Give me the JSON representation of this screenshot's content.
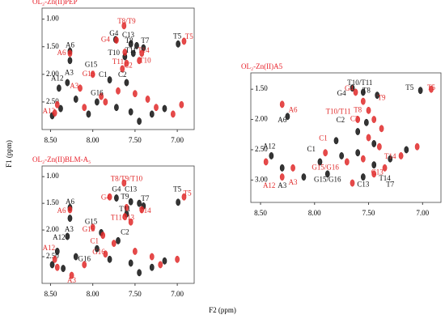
{
  "chart_data": [
    {
      "type": "nmr",
      "title": "OL₂-Zn(II)PEP",
      "title_color": "#e8202a",
      "xlim": [
        8.6,
        6.8
      ],
      "ylim": [
        3.0,
        0.8
      ],
      "xticks": [
        {
          "value": 8.5,
          "label": "8.50"
        },
        {
          "value": 8.0,
          "label": "8.00"
        },
        {
          "value": 7.5,
          "label": "7.50"
        },
        {
          "value": 7.0,
          "label": "7.00"
        }
      ],
      "yticks": [
        {
          "value": 1.0,
          "label": "1.00"
        },
        {
          "value": 1.5,
          "label": "1.50"
        },
        {
          "value": 2.0,
          "label": "2.00"
        },
        {
          "value": 2.5,
          "label": "2.50"
        }
      ],
      "series": [
        {
          "color": "#111111",
          "x": [
            8.27,
            8.27,
            7.73,
            7.55,
            7.48,
            7.4,
            6.99,
            7.52,
            7.62,
            7.8,
            7.6,
            8.3,
            8.4,
            7.95,
            8.48,
            8.38,
            8.2,
            8.05,
            7.72,
            7.55,
            7.45,
            7.3,
            7.15
          ],
          "y": [
            1.58,
            1.75,
            1.37,
            1.45,
            1.48,
            1.52,
            1.45,
            1.62,
            1.68,
            2.1,
            2.15,
            2.15,
            2.25,
            2.5,
            2.75,
            2.62,
            2.45,
            2.72,
            2.6,
            2.68,
            2.85,
            2.72,
            2.62
          ]
        },
        {
          "color": "#e02a2a",
          "x": [
            7.63,
            6.92,
            7.72,
            8.27,
            7.62,
            7.42,
            7.45,
            7.6,
            7.65,
            8.15,
            8.0,
            7.9,
            7.7,
            8.45,
            8.42,
            8.1,
            7.85,
            7.5,
            7.35,
            7.25,
            7.05,
            6.95
          ],
          "y": [
            1.12,
            1.4,
            1.38,
            1.62,
            1.6,
            1.62,
            1.75,
            1.8,
            1.9,
            2.25,
            2.0,
            2.4,
            2.3,
            2.7,
            2.55,
            2.6,
            2.5,
            2.35,
            2.45,
            2.6,
            2.72,
            2.55
          ]
        }
      ],
      "annotations": [
        {
          "text": "T8/T9",
          "x": 7.6,
          "y": 1.05,
          "color": "#e02a2a"
        },
        {
          "text": "T5",
          "x": 6.86,
          "y": 1.33,
          "color": "#e02a2a"
        },
        {
          "text": "G4",
          "x": 7.85,
          "y": 1.38,
          "color": "#e02a2a"
        },
        {
          "text": "A6",
          "x": 8.37,
          "y": 1.62,
          "color": "#e02a2a"
        },
        {
          "text": "A6",
          "x": 8.27,
          "y": 1.48,
          "color": "#111111"
        },
        {
          "text": "G4",
          "x": 7.75,
          "y": 1.27,
          "color": "#111111"
        },
        {
          "text": "C13",
          "x": 7.58,
          "y": 1.3,
          "color": "#111111"
        },
        {
          "text": "T8",
          "x": 7.57,
          "y": 1.4,
          "color": "#111111"
        },
        {
          "text": "T7",
          "x": 7.38,
          "y": 1.4,
          "color": "#111111"
        },
        {
          "text": "T5",
          "x": 7.0,
          "y": 1.32,
          "color": "#111111"
        },
        {
          "text": "T10",
          "x": 7.75,
          "y": 1.62,
          "color": "#111111"
        },
        {
          "text": "T11",
          "x": 7.55,
          "y": 1.58,
          "color": "#111111"
        },
        {
          "text": "T14",
          "x": 7.4,
          "y": 1.58,
          "color": "#e02a2a"
        },
        {
          "text": "T10",
          "x": 7.38,
          "y": 1.76,
          "color": "#e02a2a"
        },
        {
          "text": "T11",
          "x": 7.7,
          "y": 1.78,
          "color": "#e02a2a"
        },
        {
          "text": "C2",
          "x": 7.58,
          "y": 1.85,
          "color": "#e02a2a"
        },
        {
          "text": "G15",
          "x": 8.02,
          "y": 1.83,
          "color": "#111111"
        },
        {
          "text": "G15",
          "x": 8.05,
          "y": 2.0,
          "color": "#e02a2a"
        },
        {
          "text": "C1",
          "x": 7.88,
          "y": 2.02,
          "color": "#111111"
        },
        {
          "text": "C2",
          "x": 7.65,
          "y": 2.02,
          "color": "#111111"
        },
        {
          "text": "A3",
          "x": 8.28,
          "y": 1.98,
          "color": "#111111"
        },
        {
          "text": "A12",
          "x": 8.42,
          "y": 2.08,
          "color": "#111111"
        },
        {
          "text": "A3",
          "x": 8.22,
          "y": 2.22,
          "color": "#e02a2a"
        },
        {
          "text": "G16",
          "x": 7.95,
          "y": 2.35,
          "color": "#111111"
        },
        {
          "text": "A12",
          "x": 8.52,
          "y": 2.68,
          "color": "#e02a2a"
        }
      ]
    },
    {
      "type": "nmr",
      "title": "OL₂-Zn(II)BLM-A₅",
      "title_color": "#e8202a",
      "xlim": [
        8.6,
        6.8
      ],
      "ylim": [
        3.0,
        0.8
      ],
      "xticks": [
        {
          "value": 8.5,
          "label": "8.50"
        },
        {
          "value": 8.0,
          "label": "8.00"
        },
        {
          "value": 7.5,
          "label": "7.50"
        },
        {
          "value": 7.0,
          "label": "7.00"
        }
      ],
      "yticks": [
        {
          "value": 1.0,
          "label": "1.00"
        },
        {
          "value": 1.5,
          "label": "1.50"
        },
        {
          "value": 2.0,
          "label": "2.00"
        },
        {
          "value": 2.5,
          "label": "2.50"
        }
      ],
      "series": [
        {
          "color": "#111111",
          "x": [
            8.27,
            8.27,
            7.72,
            7.55,
            7.45,
            7.4,
            6.99,
            7.6,
            7.9,
            7.7,
            8.3,
            8.42,
            7.95,
            8.48,
            8.35,
            8.2,
            7.8,
            7.55,
            7.45,
            7.3,
            7.15
          ],
          "y": [
            1.58,
            1.78,
            1.4,
            1.47,
            1.5,
            1.55,
            1.48,
            1.7,
            2.05,
            2.2,
            2.12,
            2.4,
            2.35,
            2.65,
            2.72,
            2.5,
            2.55,
            2.62,
            2.8,
            2.7,
            2.58
          ]
        },
        {
          "color": "#e02a2a",
          "x": [
            7.63,
            6.92,
            7.8,
            8.27,
            7.6,
            7.42,
            7.62,
            7.55,
            8.0,
            7.88,
            7.75,
            8.45,
            8.42,
            8.25,
            8.1,
            7.85,
            7.5,
            7.3,
            7.2,
            7.0
          ],
          "y": [
            1.12,
            1.38,
            1.38,
            1.62,
            1.58,
            1.62,
            1.75,
            1.85,
            1.95,
            2.1,
            2.25,
            2.55,
            2.7,
            2.85,
            2.65,
            2.45,
            2.4,
            2.5,
            2.65,
            2.55
          ]
        }
      ],
      "annotations": [
        {
          "text": "T8/T9/T10",
          "x": 7.6,
          "y": 1.05,
          "color": "#e02a2a"
        },
        {
          "text": "T5",
          "x": 6.88,
          "y": 1.32,
          "color": "#e02a2a"
        },
        {
          "text": "T5",
          "x": 7.0,
          "y": 1.25,
          "color": "#111111"
        },
        {
          "text": "G4",
          "x": 7.72,
          "y": 1.25,
          "color": "#111111"
        },
        {
          "text": "G4",
          "x": 7.85,
          "y": 1.4,
          "color": "#e02a2a"
        },
        {
          "text": "C13",
          "x": 7.55,
          "y": 1.25,
          "color": "#111111"
        },
        {
          "text": "T9",
          "x": 7.62,
          "y": 1.38,
          "color": "#111111"
        },
        {
          "text": "T7",
          "x": 7.38,
          "y": 1.42,
          "color": "#111111"
        },
        {
          "text": "A6",
          "x": 8.27,
          "y": 1.48,
          "color": "#111111"
        },
        {
          "text": "A6",
          "x": 8.37,
          "y": 1.65,
          "color": "#e02a2a"
        },
        {
          "text": "T11",
          "x": 7.62,
          "y": 1.62,
          "color": "#111111"
        },
        {
          "text": "T14",
          "x": 7.38,
          "y": 1.65,
          "color": "#e02a2a"
        },
        {
          "text": "T11",
          "x": 7.72,
          "y": 1.78,
          "color": "#e02a2a"
        },
        {
          "text": "C13",
          "x": 7.58,
          "y": 1.78,
          "color": "#e02a2a"
        },
        {
          "text": "G15",
          "x": 8.02,
          "y": 1.85,
          "color": "#111111"
        },
        {
          "text": "G15",
          "x": 8.05,
          "y": 2.0,
          "color": "#e02a2a"
        },
        {
          "text": "C2",
          "x": 7.62,
          "y": 2.05,
          "color": "#111111"
        },
        {
          "text": "C1",
          "x": 7.98,
          "y": 2.22,
          "color": "#e02a2a"
        },
        {
          "text": "A3",
          "x": 8.28,
          "y": 2.0,
          "color": "#111111"
        },
        {
          "text": "A12",
          "x": 8.4,
          "y": 2.15,
          "color": "#111111"
        },
        {
          "text": "A12",
          "x": 8.52,
          "y": 2.35,
          "color": "#e02a2a"
        },
        {
          "text": "G16",
          "x": 7.93,
          "y": 2.42,
          "color": "#e02a2a"
        },
        {
          "text": "G16",
          "x": 8.1,
          "y": 2.55,
          "color": "#111111"
        },
        {
          "text": "A3",
          "x": 8.25,
          "y": 2.95,
          "color": "#e02a2a"
        }
      ]
    },
    {
      "type": "nmr",
      "title": "OL₂-Zn(II)A5",
      "title_color": "#e8202a",
      "xlim": [
        8.59,
        6.83
      ],
      "ylim": [
        3.37,
        1.23
      ],
      "xticks": [
        {
          "value": 8.5,
          "label": "8.50"
        },
        {
          "value": 8.0,
          "label": "8.00"
        },
        {
          "value": 7.5,
          "label": "7.50"
        },
        {
          "value": 7.0,
          "label": "7.00"
        }
      ],
      "yticks": [
        {
          "value": 1.5,
          "label": "1.50"
        },
        {
          "value": 2.0,
          "label": "2.00"
        },
        {
          "value": 2.5,
          "label": "2.50"
        },
        {
          "value": 3.0,
          "label": "3.00"
        }
      ],
      "series": [
        {
          "color": "#111111",
          "x": [
            7.65,
            7.55,
            7.42,
            7.02,
            8.25,
            7.8,
            7.6,
            7.52,
            7.45,
            8.4,
            8.3,
            7.95,
            7.75,
            7.6,
            7.45,
            7.3,
            7.15,
            8.1,
            7.88,
            7.55
          ],
          "y": [
            1.48,
            1.55,
            1.6,
            1.52,
            1.95,
            2.35,
            2.2,
            2.05,
            2.4,
            2.6,
            2.8,
            2.7,
            2.6,
            2.55,
            2.75,
            2.65,
            2.5,
            2.95,
            2.9,
            2.95
          ]
        },
        {
          "color": "#e02a2a",
          "x": [
            6.92,
            7.62,
            7.55,
            7.5,
            7.45,
            7.38,
            8.3,
            7.6,
            7.5,
            7.4,
            8.45,
            8.3,
            8.2,
            7.9,
            7.7,
            7.35,
            7.2,
            7.05,
            7.55,
            7.45,
            7.65
          ],
          "y": [
            1.5,
            1.55,
            1.7,
            1.85,
            2.0,
            2.15,
            1.75,
            2.0,
            2.3,
            2.45,
            2.7,
            2.95,
            2.8,
            2.55,
            2.7,
            2.8,
            2.6,
            2.45,
            2.65,
            2.9,
            3.05
          ]
        }
      ],
      "annotations": [
        {
          "text": "T10/T11",
          "x": 7.58,
          "y": 1.4,
          "color": "#111111"
        },
        {
          "text": "T8",
          "x": 7.52,
          "y": 1.53,
          "color": "#111111"
        },
        {
          "text": "G4",
          "x": 7.75,
          "y": 1.58,
          "color": "#111111"
        },
        {
          "text": "G4",
          "x": 7.68,
          "y": 1.5,
          "color": "#e02a2a"
        },
        {
          "text": "T9",
          "x": 7.38,
          "y": 1.65,
          "color": "#e02a2a"
        },
        {
          "text": "T5",
          "x": 7.12,
          "y": 1.48,
          "color": "#111111"
        },
        {
          "text": "T5",
          "x": 6.92,
          "y": 1.48,
          "color": "#e02a2a"
        },
        {
          "text": "A6",
          "x": 8.2,
          "y": 1.85,
          "color": "#e02a2a"
        },
        {
          "text": "A6",
          "x": 8.3,
          "y": 2.02,
          "color": "#111111"
        },
        {
          "text": "T10/T11",
          "x": 7.78,
          "y": 1.88,
          "color": "#e02a2a"
        },
        {
          "text": "T8",
          "x": 7.6,
          "y": 1.85,
          "color": "#e02a2a"
        },
        {
          "text": "C2",
          "x": 7.76,
          "y": 2.02,
          "color": "#111111"
        },
        {
          "text": "C2",
          "x": 7.63,
          "y": 2.0,
          "color": "#e02a2a"
        },
        {
          "text": "C1",
          "x": 7.92,
          "y": 2.32,
          "color": "#e02a2a"
        },
        {
          "text": "C1",
          "x": 8.03,
          "y": 2.5,
          "color": "#111111"
        },
        {
          "text": "A12",
          "x": 8.42,
          "y": 2.45,
          "color": "#111111"
        },
        {
          "text": "T14",
          "x": 7.3,
          "y": 2.62,
          "color": "#e02a2a"
        },
        {
          "text": "G15/G16",
          "x": 7.9,
          "y": 2.8,
          "color": "#e02a2a"
        },
        {
          "text": "G15/G16",
          "x": 7.88,
          "y": 3.0,
          "color": "#111111"
        },
        {
          "text": "C13",
          "x": 7.42,
          "y": 2.88,
          "color": "#e02a2a"
        },
        {
          "text": "T14",
          "x": 7.35,
          "y": 2.98,
          "color": "#111111"
        },
        {
          "text": "C13",
          "x": 7.55,
          "y": 3.08,
          "color": "#111111"
        },
        {
          "text": "T7",
          "x": 7.3,
          "y": 3.08,
          "color": "#111111"
        },
        {
          "text": "A12",
          "x": 8.42,
          "y": 3.1,
          "color": "#e02a2a"
        },
        {
          "text": "A3",
          "x": 8.3,
          "y": 3.1,
          "color": "#111111"
        },
        {
          "text": "A3",
          "x": 8.2,
          "y": 3.05,
          "color": "#e02a2a"
        }
      ]
    }
  ],
  "x_label": "F2 (ppm)",
  "y_label": "F1 (ppm)"
}
